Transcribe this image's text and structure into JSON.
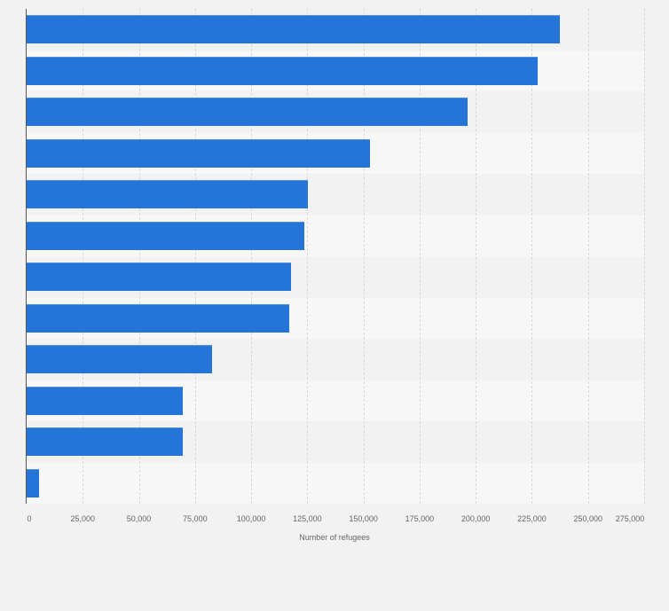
{
  "chart_data": {
    "type": "bar",
    "orientation": "horizontal",
    "title": "",
    "xlabel": "Number of refugees",
    "ylabel": "",
    "categories": [
      "",
      "",
      "",
      "",
      "",
      "",
      "",
      "",
      "",
      "",
      "",
      ""
    ],
    "values": [
      237400,
      227500,
      196300,
      152800,
      125200,
      123500,
      117700,
      116900,
      82500,
      69500,
      69500,
      5500
    ],
    "xlim": [
      0,
      275000
    ],
    "xticks": [
      0,
      25000,
      50000,
      75000,
      100000,
      125000,
      150000,
      175000,
      200000,
      225000,
      250000,
      275000
    ],
    "xtick_labels": [
      "0",
      "25,000",
      "50,000",
      "75,000",
      "100,000",
      "125,000",
      "150,000",
      "175,000",
      "200,000",
      "225,000",
      "250,000",
      "275,000"
    ],
    "grid": true,
    "legend": null,
    "colors": {
      "bar": "#2575d9",
      "background": "#f2f2f2",
      "stripe_light": "#f7f7f7",
      "stripe_dark": "#f2f2f2",
      "grid": "#d9d9d9",
      "axis": "#555555",
      "text": "#666666"
    }
  }
}
